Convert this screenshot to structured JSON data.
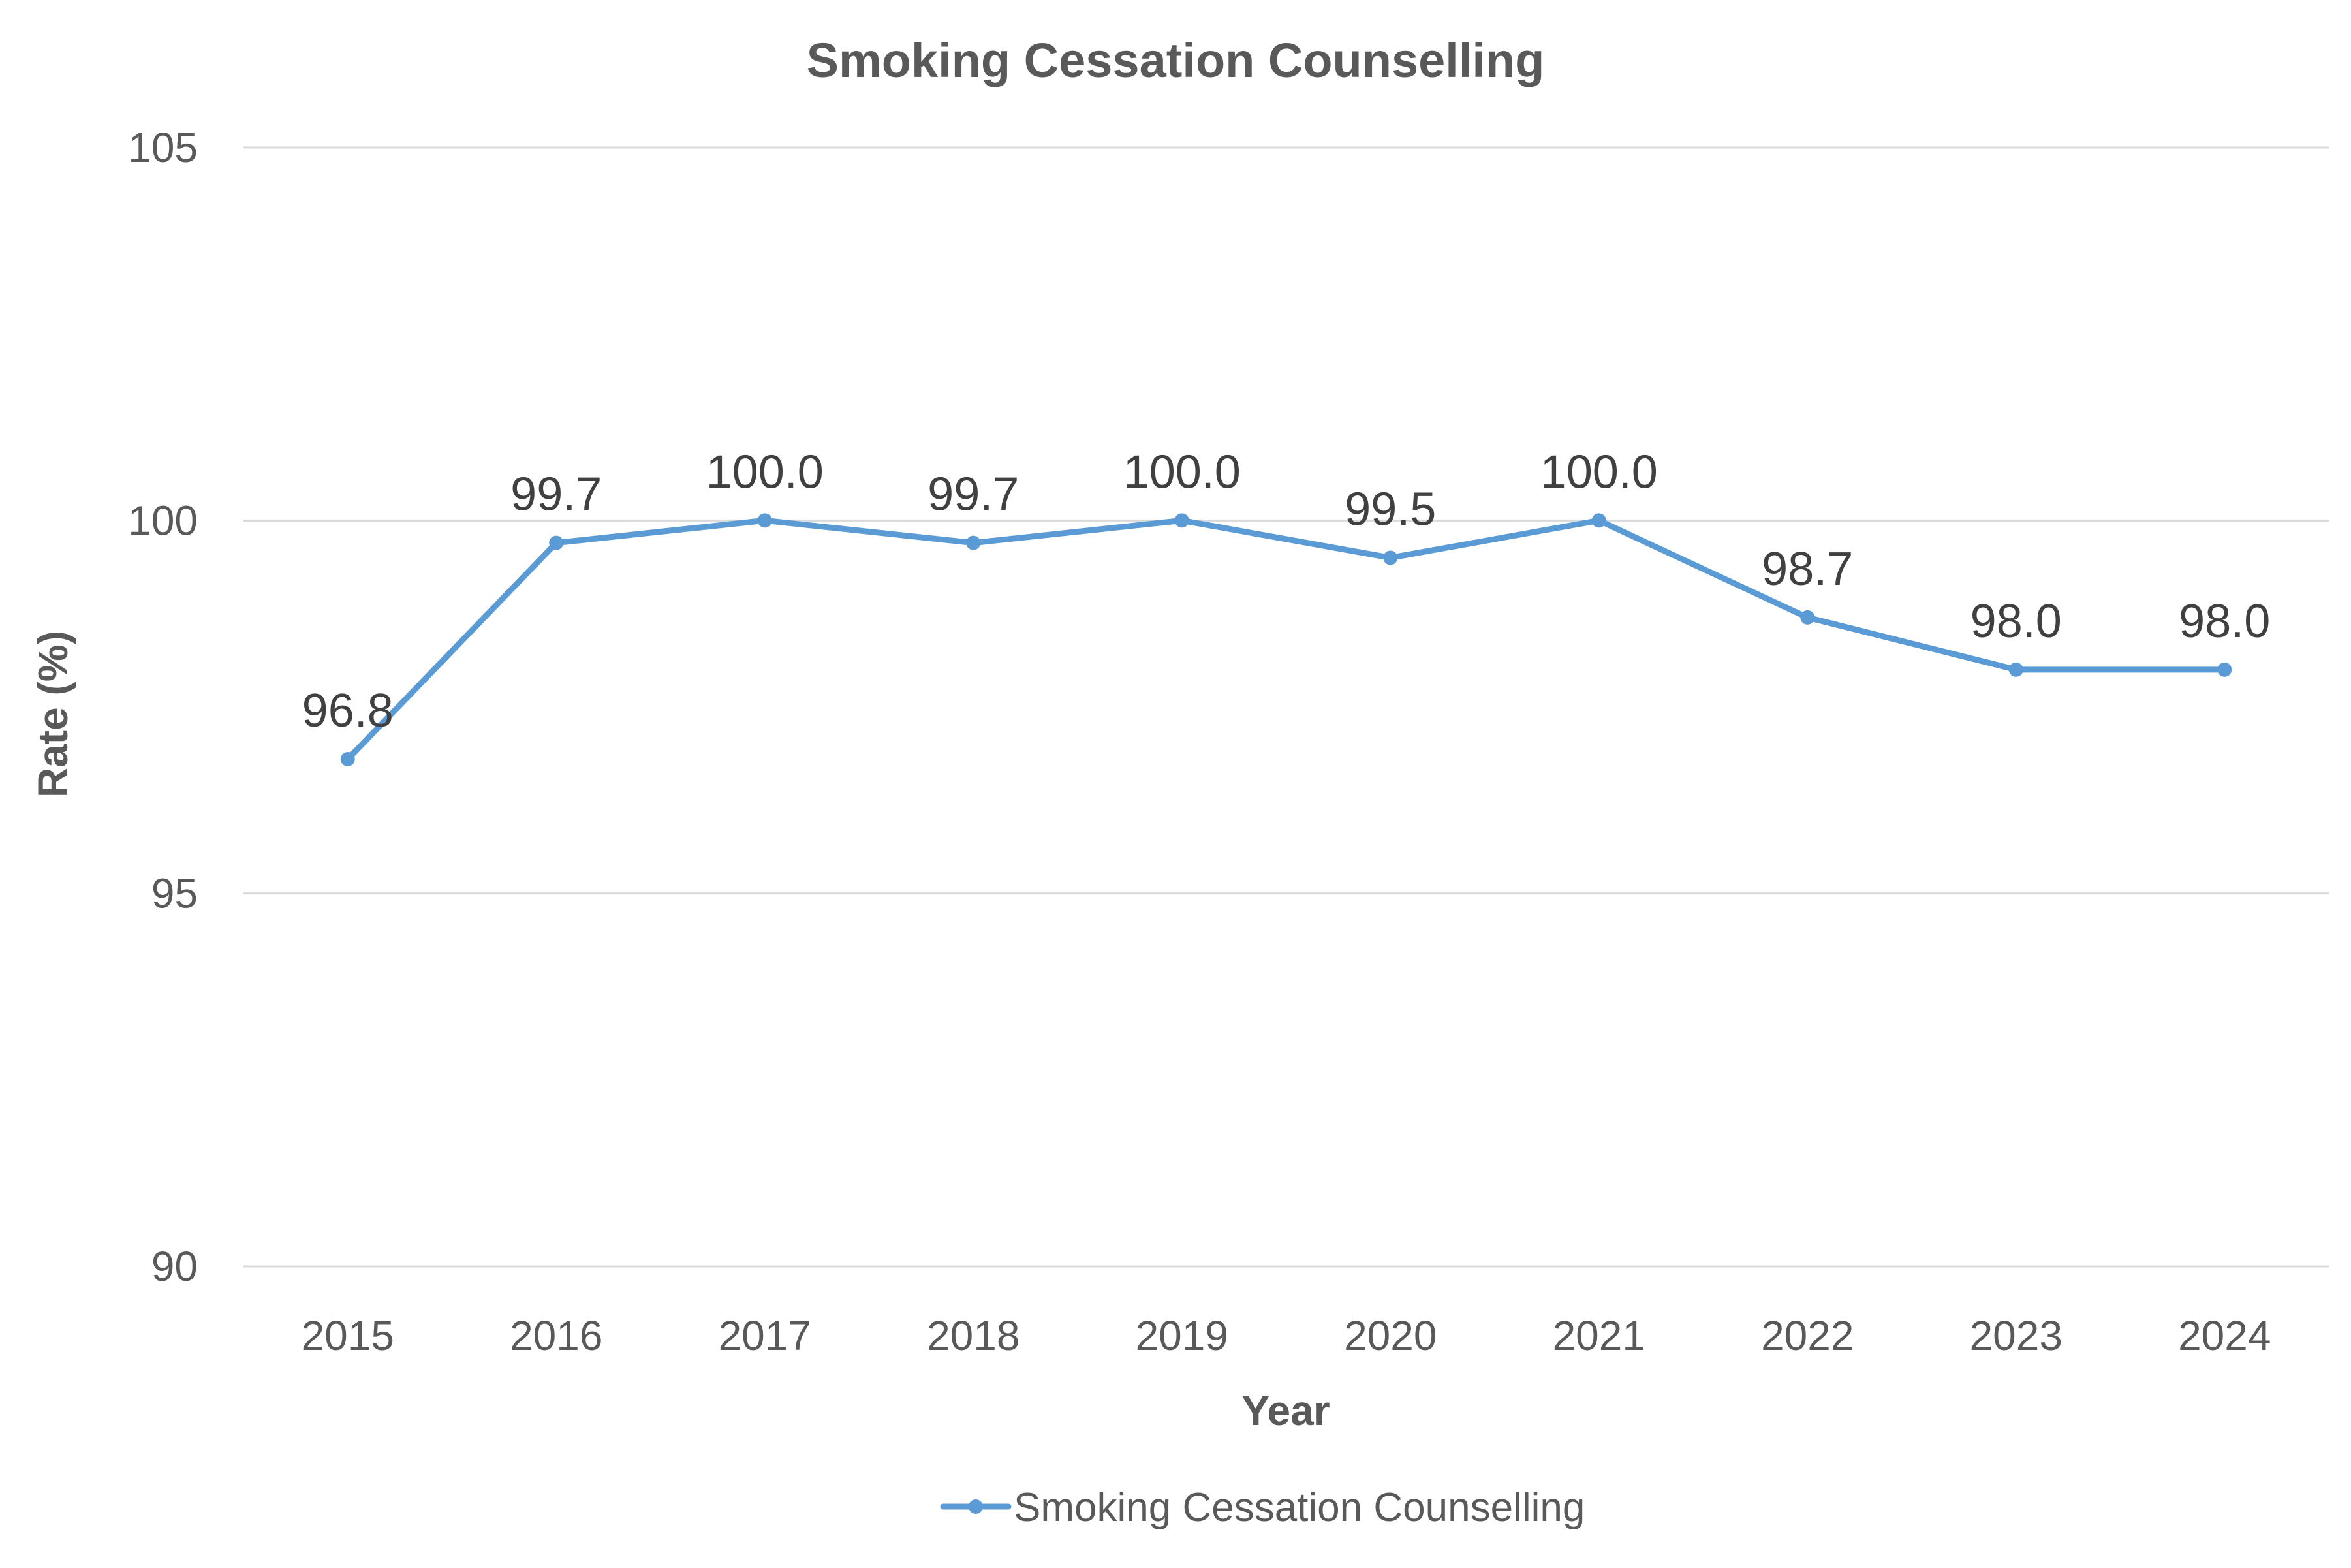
{
  "chart_data": {
    "type": "line",
    "title": "Smoking Cessation Counselling",
    "xlabel": "Year",
    "ylabel": "Rate (%)",
    "categories": [
      "2015",
      "2016",
      "2017",
      "2018",
      "2019",
      "2020",
      "2021",
      "2022",
      "2023",
      "2024"
    ],
    "series": [
      {
        "name": "Smoking Cessation Counselling",
        "values": [
          96.8,
          99.7,
          100.0,
          99.7,
          100.0,
          99.5,
          100.0,
          98.7,
          98.0,
          98.0
        ],
        "data_labels": [
          "96.8",
          "99.7",
          "100.0",
          "99.7",
          "100.0",
          "99.5",
          "100.0",
          "98.7",
          "98.0",
          "98.0"
        ],
        "color": "#5b9bd5",
        "marker": "circle"
      }
    ],
    "ylim": [
      90,
      105
    ],
    "yticks": [
      90,
      95,
      100,
      105
    ],
    "ytick_labels": [
      "90",
      "95",
      "100",
      "105"
    ],
    "grid": "horizontal",
    "legend_position": "bottom-center"
  }
}
